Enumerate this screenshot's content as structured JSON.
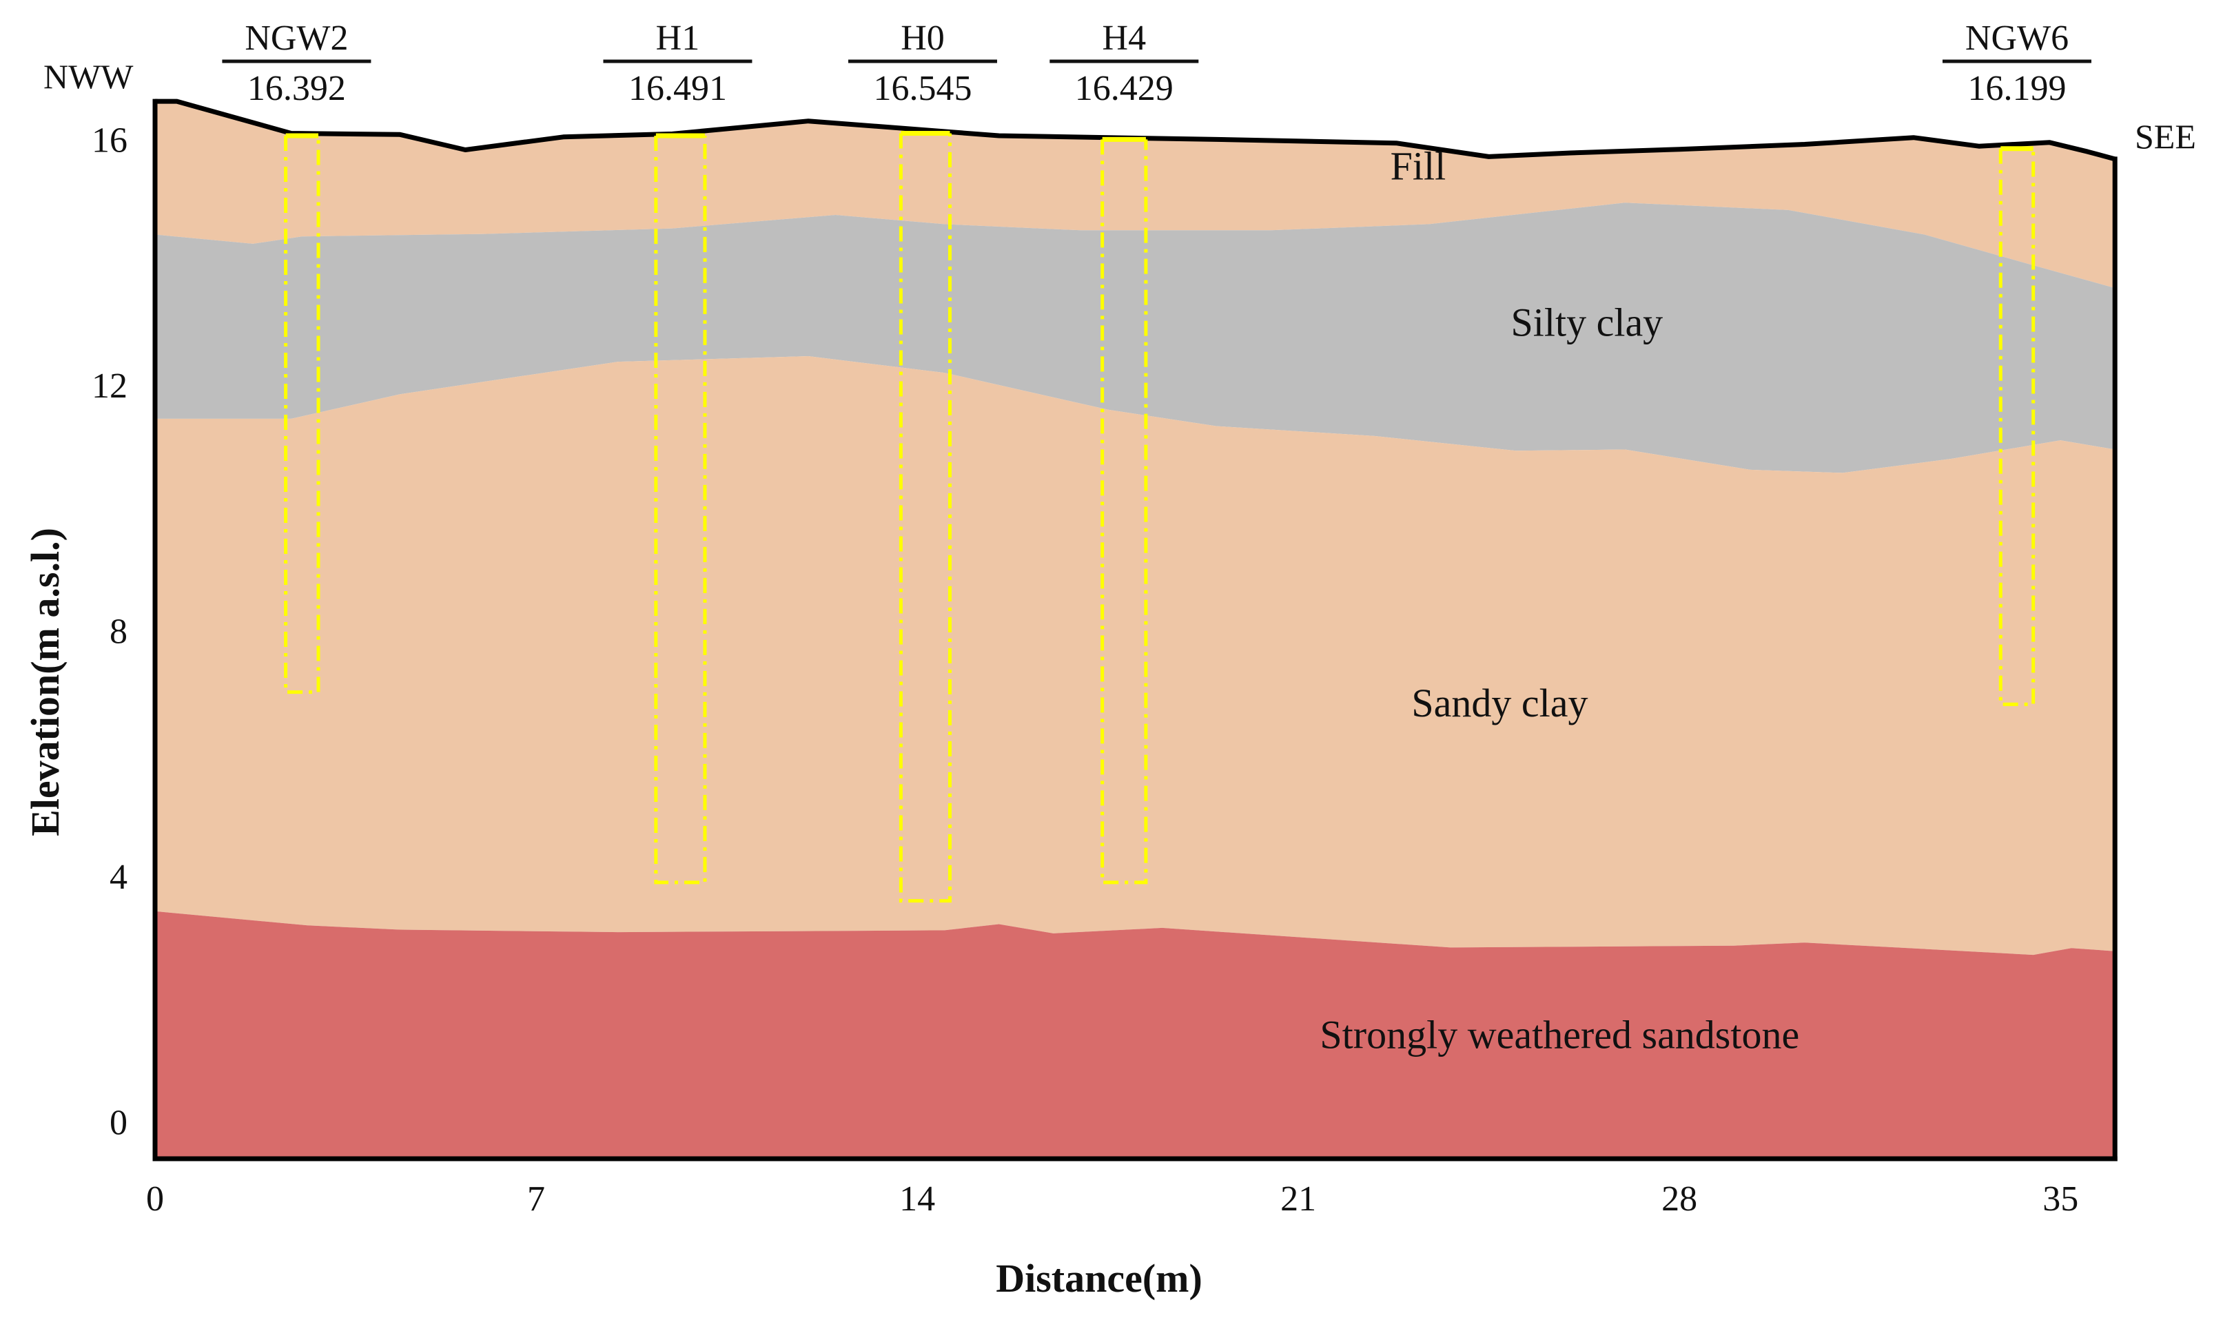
{
  "figure": {
    "x_axis": {
      "title": "Distance(m)",
      "range": [
        0,
        36.2
      ],
      "ticks": [
        0,
        7,
        14,
        21,
        28,
        35
      ]
    },
    "y_axis": {
      "title": "Elevation(m a.s.l.)",
      "range": [
        -0.6,
        16.7
      ],
      "ticks": [
        0,
        4,
        8,
        12,
        16
      ]
    },
    "directions": {
      "left": "NWW",
      "right": "SEE"
    },
    "colors": {
      "fill": "#eec6a6",
      "silty_clay": "#bebebe",
      "sandy_clay": "#eec6a6",
      "sandstone": "#d86c6b",
      "boundary": "#000000",
      "well": "#ffff00"
    },
    "layers": [
      {
        "id": "fill",
        "label": "Fill",
        "label_pos": [
          23.2,
          15.35
        ]
      },
      {
        "id": "silty-clay",
        "label": "Silty clay",
        "label_pos": [
          26.3,
          12.8
        ]
      },
      {
        "id": "sandy-clay",
        "label": "Sandy clay",
        "label_pos": [
          24.7,
          6.6
        ]
      },
      {
        "id": "sandstone",
        "label": "Strongly weathered sandstone",
        "label_pos": [
          25.8,
          1.2
        ]
      }
    ],
    "surface": [
      [
        0,
        16.62
      ],
      [
        0.4,
        16.62
      ],
      [
        2.5,
        16.1
      ],
      [
        4.5,
        16.08
      ],
      [
        5.7,
        15.83
      ],
      [
        7.5,
        16.04
      ],
      [
        9.5,
        16.09
      ],
      [
        12,
        16.3
      ],
      [
        15.5,
        16.06
      ],
      [
        19.5,
        16.0
      ],
      [
        22.8,
        15.94
      ],
      [
        24.5,
        15.72
      ],
      [
        26,
        15.78
      ],
      [
        28,
        15.84
      ],
      [
        30.3,
        15.92
      ],
      [
        32.3,
        16.03
      ],
      [
        33.5,
        15.89
      ],
      [
        34.8,
        15.95
      ],
      [
        35.5,
        15.8
      ],
      [
        36,
        15.68
      ]
    ],
    "fill_base": [
      [
        0,
        14.45
      ],
      [
        1.8,
        14.3
      ],
      [
        2.7,
        14.42
      ],
      [
        6,
        14.46
      ],
      [
        9.5,
        14.55
      ],
      [
        12.5,
        14.77
      ],
      [
        14.5,
        14.62
      ],
      [
        17,
        14.52
      ],
      [
        20.5,
        14.52
      ],
      [
        23.4,
        14.62
      ],
      [
        27,
        14.97
      ],
      [
        30,
        14.85
      ],
      [
        32.5,
        14.45
      ],
      [
        34.5,
        13.95
      ],
      [
        36,
        13.58
      ]
    ],
    "silty_base": [
      [
        0,
        11.45
      ],
      [
        2.5,
        11.45
      ],
      [
        4.5,
        11.85
      ],
      [
        8.5,
        12.38
      ],
      [
        12,
        12.47
      ],
      [
        14.5,
        12.2
      ],
      [
        17.5,
        11.6
      ],
      [
        19.5,
        11.33
      ],
      [
        22.4,
        11.17
      ],
      [
        25,
        10.93
      ],
      [
        27,
        10.95
      ],
      [
        29.3,
        10.62
      ],
      [
        31,
        10.57
      ],
      [
        33,
        10.8
      ],
      [
        35,
        11.1
      ],
      [
        36,
        10.95
      ]
    ],
    "sandstone_top": [
      [
        0,
        3.43
      ],
      [
        2.8,
        3.2
      ],
      [
        4.5,
        3.13
      ],
      [
        8.5,
        3.09
      ],
      [
        14.5,
        3.12
      ],
      [
        15.5,
        3.22
      ],
      [
        16.5,
        3.07
      ],
      [
        18.5,
        3.16
      ],
      [
        23.8,
        2.84
      ],
      [
        29,
        2.87
      ],
      [
        30.3,
        2.92
      ],
      [
        32,
        2.84
      ],
      [
        34.5,
        2.72
      ],
      [
        35.2,
        2.83
      ],
      [
        36,
        2.78
      ]
    ],
    "wells": [
      {
        "name": "NGW2",
        "elevation": "16.392",
        "x_left": 2.4,
        "x_right": 3.0,
        "top": 16.06,
        "bottom": 7.0,
        "label_x": 2.6
      },
      {
        "name": "H1",
        "elevation": "16.491",
        "x_left": 9.2,
        "x_right": 10.1,
        "top": 16.06,
        "bottom": 3.9,
        "label_x": 9.6
      },
      {
        "name": "H0",
        "elevation": "16.545",
        "x_left": 13.7,
        "x_right": 14.6,
        "top": 16.1,
        "bottom": 3.6,
        "label_x": 14.1
      },
      {
        "name": "H4",
        "elevation": "16.429",
        "x_left": 17.4,
        "x_right": 18.2,
        "top": 16.0,
        "bottom": 3.9,
        "label_x": 17.8
      },
      {
        "name": "NGW6",
        "elevation": "16.199",
        "x_left": 33.9,
        "x_right": 34.5,
        "top": 15.85,
        "bottom": 6.8,
        "label_x": 34.2
      }
    ]
  }
}
